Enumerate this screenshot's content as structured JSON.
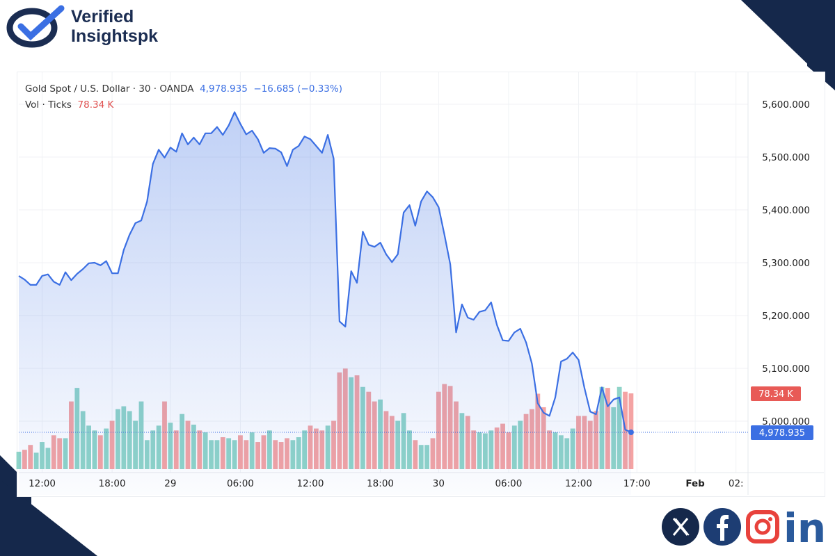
{
  "brand": {
    "line1": "Verified",
    "line2": "Insightspk"
  },
  "legend": {
    "symbol": "Gold Spot / U.S. Dollar · 30 · OANDA",
    "price": "4,978.935",
    "change": "−16.685 (−0.33%)",
    "vol_label": "Vol · Ticks",
    "vol_value": "78.34 K"
  },
  "badges": {
    "volume": "78.34 K",
    "price": "4,978.935"
  },
  "colors": {
    "line": "#3b6fe3",
    "up": "#8fd4c8",
    "down": "#f4a3a3",
    "navy": "#15284b"
  },
  "social": [
    "x-icon",
    "facebook-icon",
    "instagram-icon",
    "linkedin-icon"
  ],
  "social_text": {
    "li": "in"
  },
  "chart_data": {
    "type": "line",
    "title": "Gold Spot / U.S. Dollar · 30 · OANDA",
    "interval_minutes": 30,
    "ylim": [
      4880,
      5700
    ],
    "y_ticks": [
      {
        "v": 5600,
        "label": "5,600.000"
      },
      {
        "v": 5500,
        "label": "5,500.000"
      },
      {
        "v": 5400,
        "label": "5,400.000"
      },
      {
        "v": 5300,
        "label": "5,300.000"
      },
      {
        "v": 5200,
        "label": "5,200.000"
      },
      {
        "v": 5100,
        "label": "5,100.000"
      },
      {
        "v": 5000,
        "label": "5,000.000"
      }
    ],
    "x_ticks": [
      {
        "i": 4,
        "label": "12:00"
      },
      {
        "i": 16,
        "label": "18:00"
      },
      {
        "i": 26,
        "label": "29"
      },
      {
        "i": 38,
        "label": "06:00"
      },
      {
        "i": 50,
        "label": "12:00"
      },
      {
        "i": 62,
        "label": "18:00"
      },
      {
        "i": 72,
        "label": "30"
      },
      {
        "i": 84,
        "label": "06:00"
      },
      {
        "i": 96,
        "label": "12:00"
      },
      {
        "i": 106,
        "label": "17:00"
      },
      {
        "i": 116,
        "label": "Feb",
        "bold": true
      },
      {
        "i": 123,
        "label": "02:"
      }
    ],
    "price": [
      5275,
      5268,
      5258,
      5258,
      5275,
      5278,
      5264,
      5258,
      5282,
      5267,
      5279,
      5288,
      5299,
      5300,
      5295,
      5303,
      5280,
      5280,
      5324,
      5353,
      5375,
      5380,
      5416,
      5487,
      5514,
      5499,
      5518,
      5510,
      5545,
      5524,
      5537,
      5524,
      5545,
      5545,
      5557,
      5542,
      5560,
      5585,
      5563,
      5543,
      5550,
      5534,
      5508,
      5517,
      5516,
      5509,
      5483,
      5514,
      5521,
      5539,
      5534,
      5521,
      5508,
      5542,
      5497,
      5189,
      5179,
      5284,
      5262,
      5359,
      5334,
      5330,
      5338,
      5316,
      5301,
      5316,
      5395,
      5409,
      5370,
      5416,
      5435,
      5424,
      5405,
      5353,
      5297,
      5168,
      5221,
      5196,
      5192,
      5207,
      5210,
      5225,
      5182,
      5153,
      5152,
      5168,
      5175,
      5149,
      5109,
      5034,
      5016,
      5010,
      5045,
      5113,
      5118,
      5130,
      5116,
      5063,
      5018,
      5013,
      5064,
      5028,
      5041,
      5045,
      4984,
      4978.935
    ],
    "volume_k": [
      18,
      20,
      25,
      17,
      28,
      22,
      35,
      32,
      32,
      70,
      84,
      60,
      45,
      40,
      35,
      42,
      50,
      62,
      65,
      60,
      50,
      70,
      30,
      40,
      45,
      70,
      48,
      40,
      57,
      50,
      46,
      40,
      38,
      30,
      30,
      33,
      32,
      30,
      35,
      30,
      38,
      28,
      35,
      40,
      30,
      28,
      32,
      30,
      33,
      40,
      45,
      42,
      40,
      45,
      50,
      100,
      104,
      95,
      97,
      85,
      80,
      70,
      72,
      60,
      55,
      50,
      58,
      40,
      30,
      25,
      25,
      32,
      80,
      88,
      86,
      70,
      58,
      55,
      40,
      38,
      37,
      40,
      43,
      47,
      38,
      45,
      50,
      57,
      62,
      78,
      64,
      40,
      38,
      35,
      32,
      42,
      55,
      55,
      50,
      60,
      85,
      84,
      64,
      85,
      80,
      78.34
    ],
    "volume_scale_max_k": 140
  }
}
